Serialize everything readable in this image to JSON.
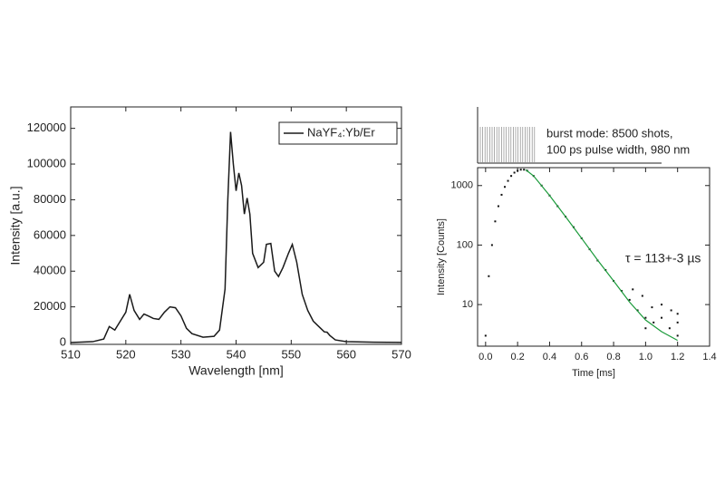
{
  "chart_data": [
    {
      "type": "line",
      "x_label": "Wavelength [nm]",
      "y_label": "Intensity [a.u.]",
      "xlim": [
        510,
        570
      ],
      "ylim": [
        -1000,
        132000
      ],
      "xticks": [
        510,
        520,
        530,
        540,
        550,
        560,
        570
      ],
      "yticks": [
        0,
        20000,
        40000,
        60000,
        80000,
        100000,
        120000
      ],
      "legend": "upper right",
      "series": [
        {
          "name": "NaYF₄:Yb/Er",
          "color": "#1a1a1a",
          "x": [
            510,
            514,
            516,
            517,
            518,
            519,
            520,
            520.7,
            521.5,
            522.5,
            523.3,
            524,
            525,
            526,
            527,
            528,
            529,
            530,
            531,
            532,
            534,
            536,
            537,
            538,
            538.5,
            539,
            539.5,
            540,
            540.5,
            541,
            541.5,
            542,
            542.5,
            543,
            544,
            545,
            545.5,
            546.3,
            547,
            547.7,
            548.5,
            549.5,
            550.2,
            551,
            552,
            553,
            554,
            555,
            556,
            556.5,
            557,
            558,
            560,
            565,
            570
          ],
          "values": [
            0,
            500,
            2000,
            9000,
            7000,
            12000,
            17000,
            27000,
            18000,
            13000,
            16000,
            15000,
            13500,
            13000,
            17000,
            20000,
            19500,
            15000,
            8000,
            5000,
            3000,
            3500,
            7000,
            30000,
            80000,
            118000,
            100000,
            85000,
            95000,
            88000,
            72000,
            81000,
            72000,
            50000,
            42000,
            45000,
            55000,
            55500,
            40000,
            37000,
            42000,
            50000,
            55000,
            45000,
            27000,
            18000,
            12000,
            9000,
            6000,
            5800,
            4000,
            1500,
            500,
            200,
            100
          ]
        }
      ]
    },
    {
      "type": "scatter",
      "x_label": "Time [ms]",
      "y_label": "Intensity [Counts]",
      "xlim": [
        -0.05,
        1.4
      ],
      "ylim": [
        2,
        2000
      ],
      "log_y": true,
      "xticks": [
        {
          "value": 0,
          "label": "0.0"
        },
        0.2,
        0.4,
        0.6,
        0.8,
        {
          "value": 1,
          "label": "1.0"
        },
        1.2,
        1.4
      ],
      "yticks": [
        10,
        100,
        1000
      ],
      "annotations": [
        "burst mode: 8500 shots,",
        "100 ps pulse width, 980 nm",
        "τ = 113+-3 µs"
      ],
      "series": [
        {
          "type": "scatter",
          "color": "#111111",
          "x": [
            0,
            0.02,
            0.04,
            0.06,
            0.08,
            0.1,
            0.12,
            0.14,
            0.16,
            0.18,
            0.2,
            0.22,
            0.24,
            0.26,
            0.3,
            0.35,
            0.4,
            0.45,
            0.5,
            0.55,
            0.6,
            0.65,
            0.7,
            0.75,
            0.8,
            0.85,
            0.9,
            0.95,
            1,
            1.05,
            1.1,
            1.15,
            1.2,
            0.92,
            0.98,
            1.04,
            1.1,
            1.16,
            1.2,
            1,
            1.2
          ],
          "values": [
            3,
            30,
            100,
            250,
            450,
            700,
            950,
            1200,
            1450,
            1650,
            1780,
            1850,
            1850,
            1780,
            1450,
            1000,
            680,
            450,
            300,
            200,
            130,
            85,
            55,
            38,
            25,
            17,
            12,
            8,
            6,
            5,
            6,
            4,
            5,
            18,
            14,
            9,
            10,
            8,
            7,
            4,
            3
          ]
        },
        {
          "type": "line",
          "color": "#1a9a3a",
          "x": [
            0.25,
            0.3,
            0.4,
            0.5,
            0.6,
            0.7,
            0.8,
            0.9,
            1,
            1.1,
            1.2
          ],
          "values": [
            1850,
            1450,
            680,
            300,
            130,
            56,
            25,
            11,
            5.5,
            3.5,
            2.5
          ]
        }
      ]
    }
  ]
}
